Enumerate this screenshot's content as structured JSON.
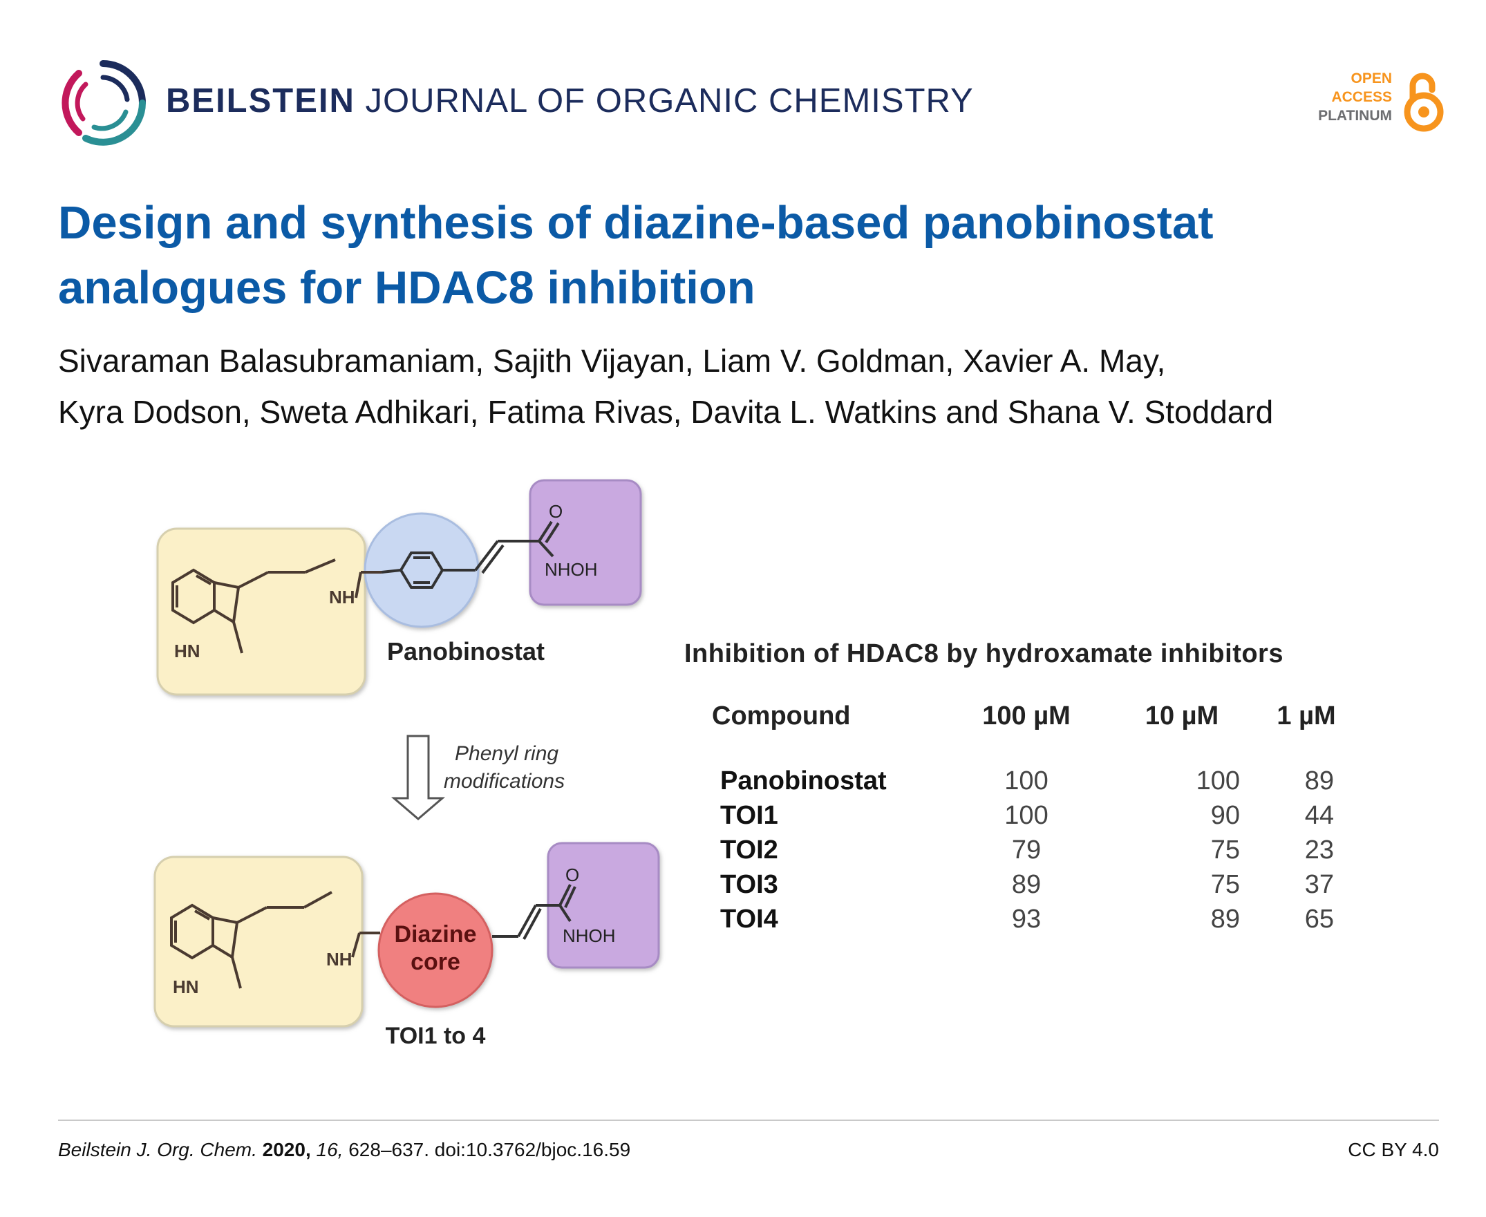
{
  "journal": {
    "brand": "BEILSTEIN",
    "rest": "JOURNAL OF ORGANIC CHEMISTRY"
  },
  "open_access": {
    "line1": "OPEN",
    "line2": "ACCESS",
    "line3": "PLATINUM"
  },
  "article": {
    "title": "Design and synthesis of diazine-based panobinostat analogues for HDAC8 inhibition",
    "authors_line1": "Sivaraman Balasubramaniam, Sajith Vijayan, Liam V. Goldman, Xavier A. May,",
    "authors_line2": "Kyra Dodson, Sweta Adhikari, Fatima Rivas, Davita L. Watkins and Shana V. Stoddard"
  },
  "scheme": {
    "top_compound": "Panobinostat",
    "arrow_label_line1": "Phenyl ring",
    "arrow_label_line2": "modifications",
    "core_label_line1": "Diazine",
    "core_label_line2": "core",
    "bottom_compound": "TOI1 to 4",
    "nh": "NH",
    "hn": "HN",
    "o": "O",
    "nhoh": "NHOH"
  },
  "table": {
    "title": "Inhibition of HDAC8 by hydroxamate inhibitors",
    "headers": [
      "Compound",
      "100 µM",
      "10 µM",
      "1 µM"
    ],
    "rows": [
      [
        "Panobinostat",
        "100",
        "100",
        "89"
      ],
      [
        "TOI1",
        "100",
        "90",
        "44"
      ],
      [
        "TOI2",
        "79",
        "75",
        "23"
      ],
      [
        "TOI3",
        "89",
        "75",
        "37"
      ],
      [
        "TOI4",
        "93",
        "89",
        "65"
      ]
    ]
  },
  "footer": {
    "journal_abbrev": "Beilstein J. Org. Chem.",
    "year": "2020,",
    "volume": "16,",
    "pages_doi": "628–637. doi:10.3762/bjoc.16.59",
    "license": "CC BY 4.0"
  },
  "colors": {
    "title_blue": "#0b5aa6",
    "journal_navy": "#1c2c5c",
    "oa_orange": "#f7941d",
    "indole_box": "#fbf0c8",
    "phenyl_circle": "#c9d8f2",
    "hydroxamate_box": "#c9a9e0",
    "diazine_circle": "#f08080"
  }
}
